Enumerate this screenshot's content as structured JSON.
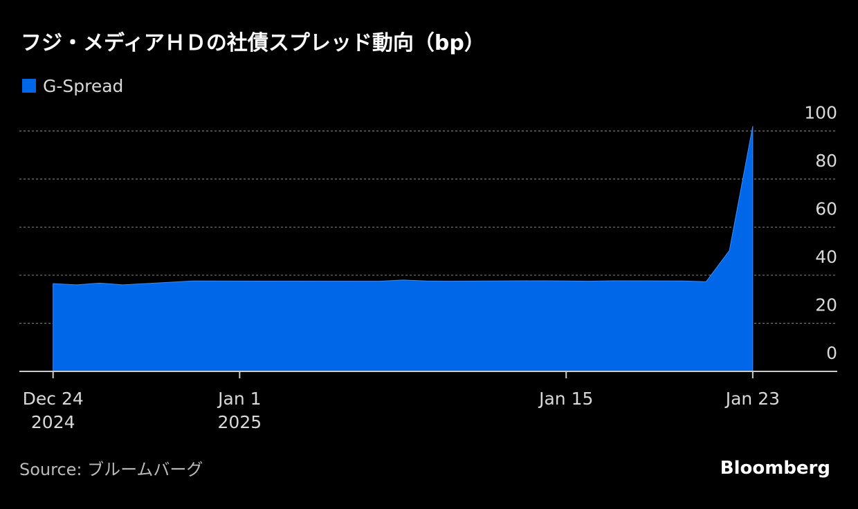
{
  "chart_data": {
    "type": "area",
    "title": "フジ・メディアＨＤの社債スプレッド動向（bp）",
    "x": [
      "2024-12-24",
      "2024-12-25",
      "2024-12-26",
      "2024-12-27",
      "2024-12-30",
      "2025-01-06",
      "2025-01-07",
      "2025-01-08",
      "2025-01-09",
      "2025-01-10",
      "2025-01-14",
      "2025-01-15",
      "2025-01-16",
      "2025-01-17",
      "2025-01-20",
      "2025-01-21",
      "2025-01-22",
      "2025-01-23"
    ],
    "series": [
      {
        "name": "G-Spread",
        "color": "#0068e8",
        "values": [
          36.5,
          36.0,
          36.7,
          36.0,
          37.6,
          37.5,
          37.5,
          38.0,
          37.6,
          37.5,
          37.7,
          37.6,
          37.5,
          37.7,
          37.6,
          37.3,
          50.3,
          102
        ]
      }
    ],
    "xlim": [
      "2024-12-23",
      "2025-01-26"
    ],
    "xticks": [
      {
        "value": "2024-12-24",
        "label": "Dec 24",
        "year": "2024"
      },
      {
        "value": "2025-01-01",
        "label": "Jan 1",
        "year": "2025"
      },
      {
        "value": "2025-01-15",
        "label": "Jan 15"
      },
      {
        "value": "2025-01-23",
        "label": "Jan 23"
      }
    ],
    "ylim": [
      0,
      105
    ],
    "yticks": [
      0,
      20,
      40,
      60,
      80,
      100
    ],
    "grid": true,
    "source": "Source: ブルームバーグ",
    "logo": "Bloomberg"
  }
}
